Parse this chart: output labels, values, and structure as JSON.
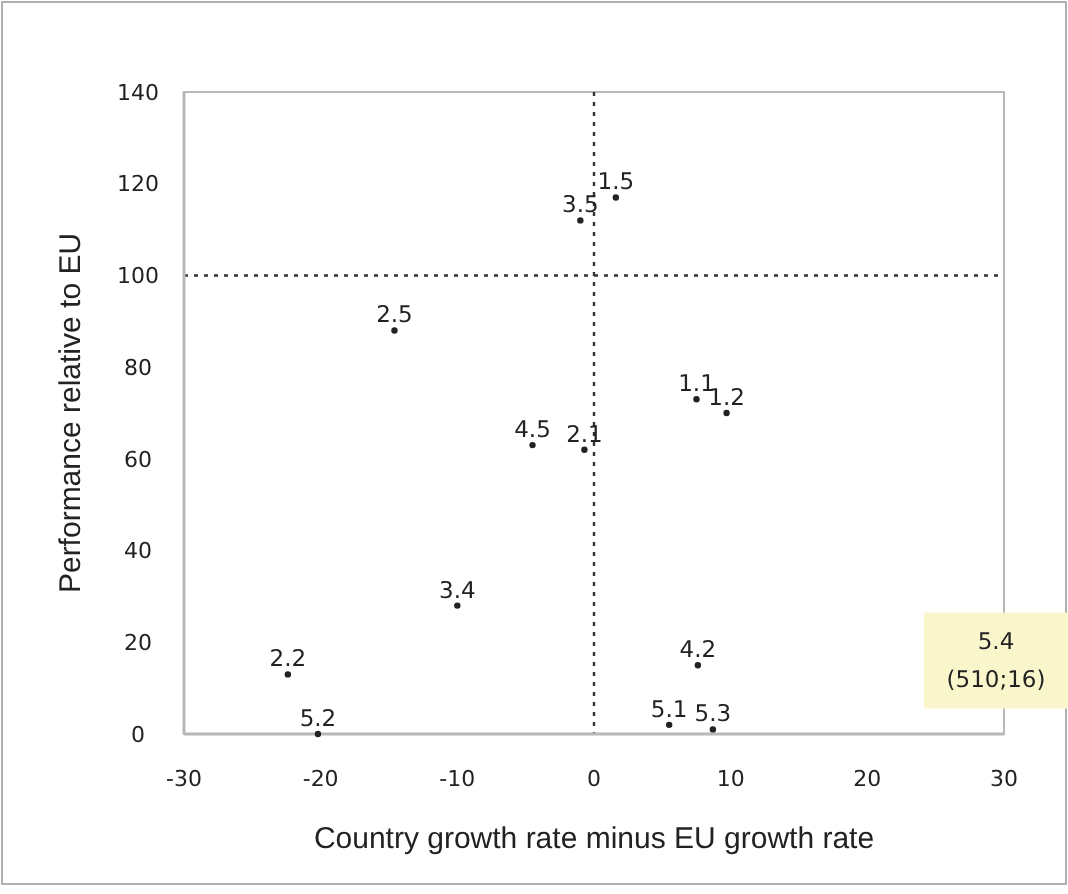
{
  "chart_data": {
    "type": "scatter",
    "xlabel": "Country growth rate minus EU growth rate",
    "ylabel": "Performance relative to EU",
    "xlim": [
      -30,
      30
    ],
    "xticks": [
      -30,
      -20,
      -10,
      0,
      10,
      20,
      30
    ],
    "ylim": [
      0,
      140
    ],
    "yticks": [
      0,
      20,
      40,
      60,
      80,
      100,
      120,
      140
    ],
    "grid": false,
    "legend": false,
    "marker": "circle",
    "ref_lines": [
      {
        "axis": "x",
        "value": 0,
        "color": "#333333",
        "line_style": "dotted"
      },
      {
        "axis": "y",
        "value": 100,
        "color": "#333333",
        "line_style": "dotted"
      }
    ],
    "annotations": [
      "5.4",
      "(510;16)"
    ],
    "series": [
      {
        "name": "1.5",
        "color": "#222222",
        "x": [
          1.6
        ],
        "values": [
          117
        ]
      },
      {
        "name": "3.5",
        "color": "#222222",
        "x": [
          -1
        ],
        "values": [
          112
        ]
      },
      {
        "name": "2.5",
        "color": "#222222",
        "x": [
          -14.6
        ],
        "values": [
          88
        ]
      },
      {
        "name": "4.5",
        "color": "#222222",
        "x": [
          -4.5
        ],
        "values": [
          63
        ]
      },
      {
        "name": "2.1",
        "color": "#222222",
        "x": [
          -0.7
        ],
        "values": [
          62
        ]
      },
      {
        "name": "1.1",
        "color": "#222222",
        "x": [
          7.5
        ],
        "values": [
          73
        ]
      },
      {
        "name": "1.2",
        "color": "#222222",
        "x": [
          9.7
        ],
        "values": [
          70
        ]
      },
      {
        "name": "3.4",
        "color": "#222222",
        "x": [
          -10
        ],
        "values": [
          28
        ]
      },
      {
        "name": "2.2",
        "color": "#222222",
        "x": [
          -22.4
        ],
        "values": [
          13
        ]
      },
      {
        "name": "5.2",
        "color": "#222222",
        "x": [
          -20.2
        ],
        "values": [
          0
        ]
      },
      {
        "name": "4.2",
        "color": "#222222",
        "x": [
          7.6
        ],
        "values": [
          15
        ]
      },
      {
        "name": "5.1",
        "color": "#222222",
        "x": [
          5.5
        ],
        "values": [
          2
        ]
      },
      {
        "name": "5.3",
        "color": "#222222",
        "x": [
          8.7
        ],
        "values": [
          1
        ]
      }
    ]
  }
}
